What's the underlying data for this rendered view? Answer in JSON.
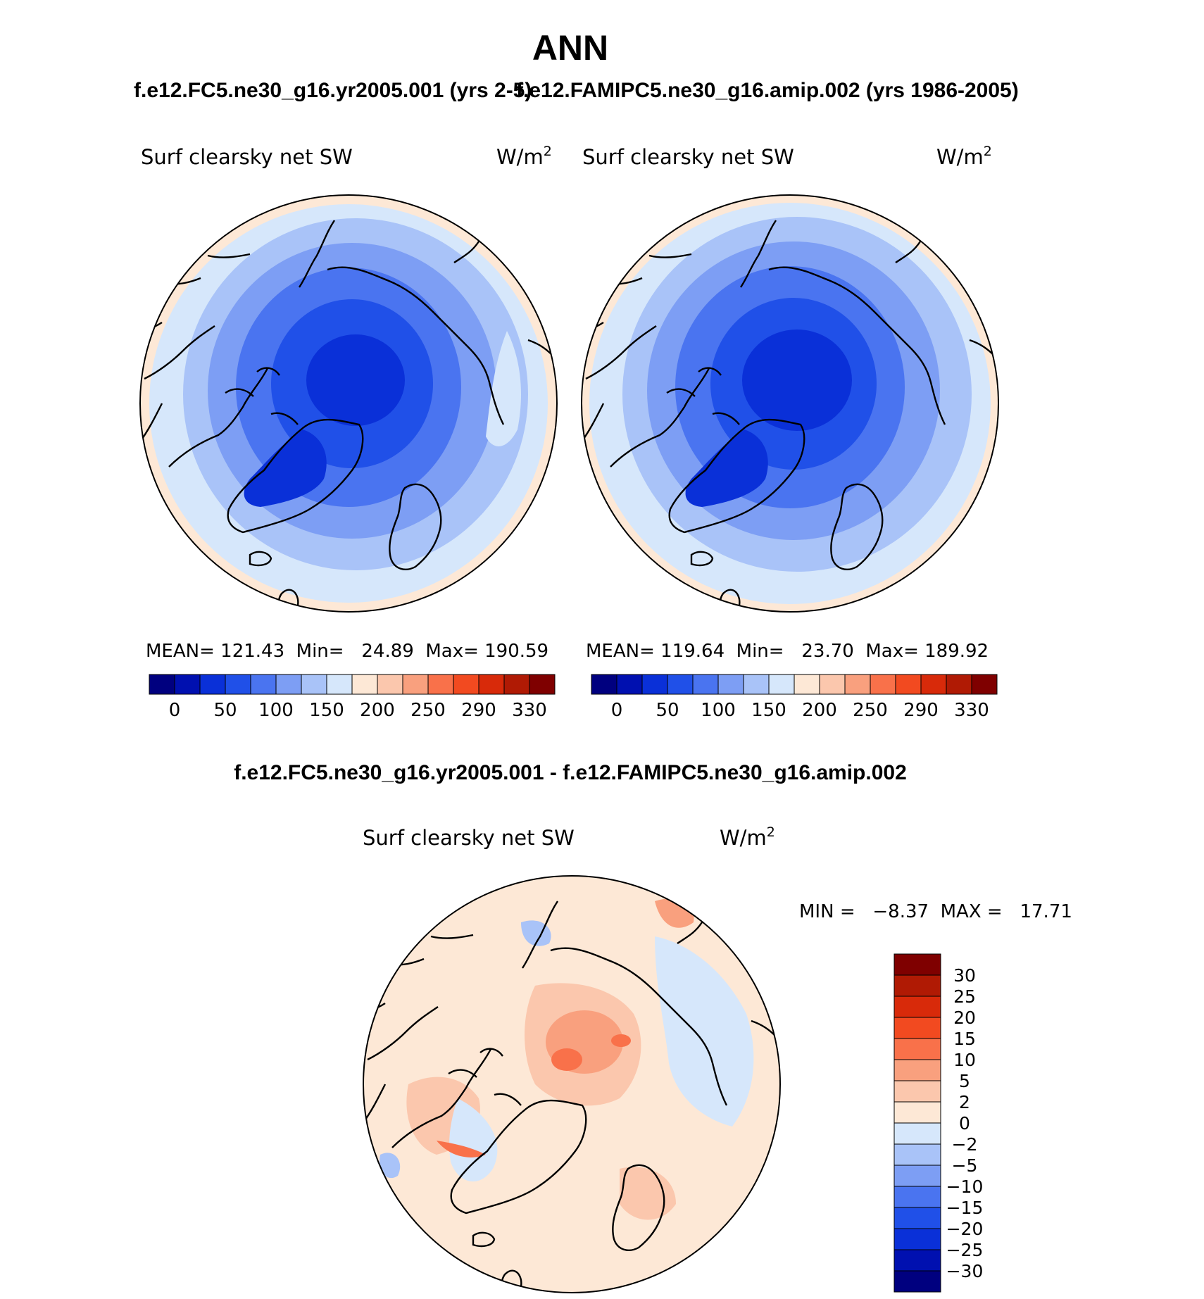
{
  "figure": {
    "title": "ANN",
    "subtitle_left": "f.e12.FC5.ne30_g16.yr2005.001 (yrs 2-5)",
    "subtitle_right": "f.e12.FAMIPC5.ne30_g16.amip.002 (yrs 1986-2005)",
    "diff_title": "f.e12.FC5.ne30_g16.yr2005.001 - f.e12.FAMIPC5.ne30_g16.amip.002"
  },
  "panels": {
    "left": {
      "variable": "Surf clearsky net SW",
      "units": "W/m",
      "units_sup": "2",
      "stats": "MEAN= 121.43  Min=   24.89  Max= 190.59"
    },
    "right": {
      "variable": "Surf clearsky net SW",
      "units": "W/m",
      "units_sup": "2",
      "stats": "MEAN= 119.64  Min=   23.70  Max= 189.92"
    },
    "diff": {
      "variable": "Surf clearsky net SW",
      "units": "W/m",
      "units_sup": "2",
      "stats": "MIN =   −8.37  MAX =   17.71"
    }
  },
  "colorbars": {
    "horizontal_labels": [
      "0",
      "50",
      "100",
      "150",
      "200",
      "250",
      "290",
      "330"
    ],
    "horizontal_colors": [
      "#00007f",
      "#0010b0",
      "#0a30d8",
      "#2050e8",
      "#4a74f0",
      "#7d9ef4",
      "#a9c3f8",
      "#d6e7fb",
      "#fde8d6",
      "#fbc7ad",
      "#f9a07e",
      "#f9714a",
      "#f24a20",
      "#d82a0a",
      "#b01a04",
      "#7f0000"
    ],
    "vertical_labels": [
      "30",
      "25",
      "20",
      "15",
      "10",
      "5",
      "2",
      "0",
      "−2",
      "−5",
      "−10",
      "−15",
      "−20",
      "−25",
      "−30"
    ],
    "vertical_colors": [
      "#7f0000",
      "#b01a04",
      "#d82a0a",
      "#f24a20",
      "#f9714a",
      "#f9a07e",
      "#fbc7ad",
      "#fde8d6",
      "#d6e7fb",
      "#a9c3f8",
      "#7d9ef4",
      "#4a74f0",
      "#2050e8",
      "#0a30d8",
      "#0010b0",
      "#00007f"
    ]
  },
  "map_colors": {
    "outer_warm": "#fde8d6",
    "light_blue": "#d6e7fb",
    "pale_blue": "#a9c3f8",
    "mid_blue": "#7d9ef4",
    "blue": "#4a74f0",
    "strong_blue": "#2050e8",
    "deep_blue": "#0a30d8",
    "diff_base": "#fde8d6",
    "diff_warm": "#fbc7ad",
    "diff_warmer": "#f9a07e",
    "diff_hot": "#f9714a",
    "diff_cool": "#d6e7fb",
    "diff_cooler": "#a9c3f8"
  }
}
